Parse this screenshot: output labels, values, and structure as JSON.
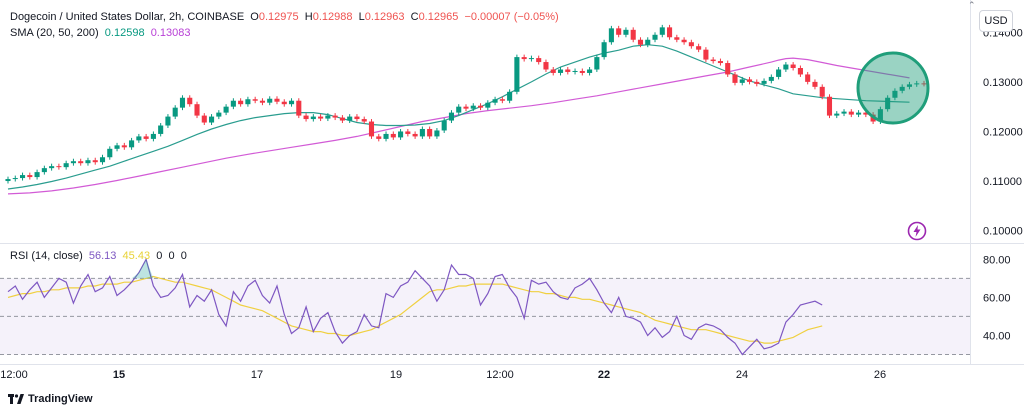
{
  "header": {
    "symbol": "Dogecoin / United States Dollar, 2h, COINBASE",
    "o_label": "O",
    "o_val": "0.12975",
    "h_label": "H",
    "h_val": "0.12988",
    "l_label": "L",
    "l_val": "0.12963",
    "c_label": "C",
    "c_val": "0.12965",
    "change": "−0.00007 (−0.05%)",
    "sma_label": "SMA (20, 50, 200)",
    "sma20_val": "0.12598",
    "sma50_val": "0.13083"
  },
  "currency_button": "USD",
  "rsi_header": {
    "label": "RSI (14, close)",
    "rsi_val": "56.13",
    "ma_val": "45.43",
    "z1": "0",
    "z2": "0",
    "z3": "0"
  },
  "branding": {
    "name": "TradingView"
  },
  "colors": {
    "up": "#089981",
    "down": "#f23645",
    "sma20": "#2a9d8f",
    "sma50": "#d25bd6",
    "rsi": "#7e57c2",
    "rsi_ma": "#f0d040",
    "highlight": "#1f9e7a"
  },
  "icons": [
    "lightning-icon",
    "tradingview-logo-icon"
  ],
  "chart_data": [
    {
      "type": "candlestick",
      "price_axis_ticks": [
        "0.14000",
        "0.13000",
        "0.12000",
        "0.11000",
        "0.10000"
      ],
      "price_range": [
        0.0975,
        0.1445
      ],
      "x_ticks": [
        "12:00",
        "15",
        "17",
        "19",
        "12:00",
        "22",
        "24",
        "26"
      ],
      "x_range": [
        0,
        126
      ],
      "candles": [
        [
          0.11,
          0.1104
        ],
        [
          0.1104,
          0.1106
        ],
        [
          0.1106,
          0.1112
        ],
        [
          0.1112,
          0.1108
        ],
        [
          0.1108,
          0.1118
        ],
        [
          0.1118,
          0.1126
        ],
        [
          0.1126,
          0.113
        ],
        [
          0.113,
          0.1128
        ],
        [
          0.1128,
          0.1136
        ],
        [
          0.1136,
          0.114
        ],
        [
          0.114,
          0.1136
        ],
        [
          0.1136,
          0.1142
        ],
        [
          0.1142,
          0.1138
        ],
        [
          0.1138,
          0.1148
        ],
        [
          0.1148,
          0.1165
        ],
        [
          0.1165,
          0.1172
        ],
        [
          0.1172,
          0.1168
        ],
        [
          0.1168,
          0.1182
        ],
        [
          0.1182,
          0.119
        ],
        [
          0.119,
          0.1185
        ],
        [
          0.1185,
          0.1195
        ],
        [
          0.1195,
          0.1212
        ],
        [
          0.1212,
          0.123
        ],
        [
          0.123,
          0.1248
        ],
        [
          0.1248,
          0.1268
        ],
        [
          0.1268,
          0.1255
        ],
        [
          0.1255,
          0.1232
        ],
        [
          0.1232,
          0.1218
        ],
        [
          0.1218,
          0.123
        ],
        [
          0.123,
          0.1238
        ],
        [
          0.1238,
          0.125
        ],
        [
          0.125,
          0.1262
        ],
        [
          0.1262,
          0.1255
        ],
        [
          0.1255,
          0.1265
        ],
        [
          0.1265,
          0.1262
        ],
        [
          0.1262,
          0.1258
        ],
        [
          0.1258,
          0.1266
        ],
        [
          0.1266,
          0.126
        ],
        [
          0.126,
          0.1255
        ],
        [
          0.1255,
          0.1262
        ],
        [
          0.1262,
          0.1232
        ],
        [
          0.1232,
          0.1225
        ],
        [
          0.1225,
          0.123
        ],
        [
          0.123,
          0.1226
        ],
        [
          0.1226,
          0.1232
        ],
        [
          0.1232,
          0.1228
        ],
        [
          0.1228,
          0.1222
        ],
        [
          0.1222,
          0.123
        ],
        [
          0.123,
          0.1225
        ],
        [
          0.1225,
          0.122
        ],
        [
          0.122,
          0.119
        ],
        [
          0.119,
          0.1185
        ],
        [
          0.1185,
          0.1195
        ],
        [
          0.1195,
          0.1188
        ],
        [
          0.1188,
          0.12
        ],
        [
          0.12,
          0.1195
        ],
        [
          0.1195,
          0.119
        ],
        [
          0.119,
          0.1205
        ],
        [
          0.1205,
          0.119
        ],
        [
          0.119,
          0.1202
        ],
        [
          0.1202,
          0.1222
        ],
        [
          0.1222,
          0.1238
        ],
        [
          0.1238,
          0.125
        ],
        [
          0.125,
          0.1246
        ],
        [
          0.1246,
          0.1252
        ],
        [
          0.1252,
          0.1248
        ],
        [
          0.1248,
          0.1258
        ],
        [
          0.1258,
          0.1265
        ],
        [
          0.1265,
          0.1262
        ],
        [
          0.1262,
          0.128
        ],
        [
          0.128,
          0.135
        ],
        [
          0.135,
          0.1346
        ],
        [
          0.1346,
          0.1348
        ],
        [
          0.1348,
          0.134
        ],
        [
          0.134,
          0.1325
        ],
        [
          0.1325,
          0.1318
        ],
        [
          0.1318,
          0.1325
        ],
        [
          0.1325,
          0.132
        ],
        [
          0.132,
          0.1322
        ],
        [
          0.1322,
          0.1318
        ],
        [
          0.1318,
          0.1325
        ],
        [
          0.1325,
          0.135
        ],
        [
          0.135,
          0.138
        ],
        [
          0.138,
          0.1408
        ],
        [
          0.1408,
          0.1395
        ],
        [
          0.1395,
          0.1405
        ],
        [
          0.1405,
          0.1385
        ],
        [
          0.1385,
          0.1375
        ],
        [
          0.1375,
          0.1385
        ],
        [
          0.1385,
          0.1395
        ],
        [
          0.1395,
          0.141
        ],
        [
          0.141,
          0.139
        ],
        [
          0.139,
          0.1385
        ],
        [
          0.1385,
          0.138
        ],
        [
          0.138,
          0.1372
        ],
        [
          0.1372,
          0.1365
        ],
        [
          0.1365,
          0.1345
        ],
        [
          0.1345,
          0.1342
        ],
        [
          0.1342,
          0.1338
        ],
        [
          0.1338,
          0.1315
        ],
        [
          0.1315,
          0.1298
        ],
        [
          0.1298,
          0.1305
        ],
        [
          0.1305,
          0.13
        ],
        [
          0.13,
          0.1296
        ],
        [
          0.1296,
          0.1302
        ],
        [
          0.1302,
          0.131
        ],
        [
          0.131,
          0.1325
        ],
        [
          0.1325,
          0.1335
        ],
        [
          0.1335,
          0.1328
        ],
        [
          0.1328,
          0.1315
        ],
        [
          0.1315,
          0.13
        ],
        [
          0.13,
          0.129
        ],
        [
          0.129,
          0.127
        ],
        [
          0.127,
          0.1232
        ],
        [
          0.1232,
          0.1236
        ],
        [
          0.1236,
          0.124
        ],
        [
          0.124,
          0.1234
        ],
        [
          0.1234,
          0.1238
        ],
        [
          0.1238,
          0.1234
        ],
        [
          0.1234,
          0.122
        ],
        [
          0.122,
          0.1245
        ],
        [
          0.1245,
          0.1268
        ],
        [
          0.1268,
          0.1282
        ],
        [
          0.1282,
          0.129
        ],
        [
          0.129,
          0.1295
        ],
        [
          0.1295,
          0.1297
        ],
        [
          0.1297,
          0.1296
        ]
      ],
      "sma20": [
        0.1084,
        0.1088,
        0.1093,
        0.1099,
        0.1106,
        0.1114,
        0.1122,
        0.113,
        0.114,
        0.115,
        0.116,
        0.117,
        0.1182,
        0.1194,
        0.1205,
        0.1214,
        0.1222,
        0.1228,
        0.1232,
        0.1236,
        0.1238,
        0.1238,
        0.1234,
        0.1226,
        0.1218,
        0.1214,
        0.1212,
        0.1212,
        0.1213,
        0.1216,
        0.1222,
        0.1232,
        0.1244,
        0.1256,
        0.127,
        0.1285,
        0.13,
        0.1316,
        0.133,
        0.134,
        0.135,
        0.1358,
        0.1364,
        0.1372,
        0.1375,
        0.1372,
        0.1362,
        0.135,
        0.1338,
        0.1326,
        0.1314,
        0.1302,
        0.1294,
        0.1286,
        0.1276,
        0.1268,
        0.1262,
        0.1259
      ],
      "sma20_x": [
        0,
        2,
        4,
        6,
        8,
        10,
        12,
        14,
        16,
        18,
        20,
        22,
        24,
        26,
        28,
        30,
        32,
        34,
        36,
        38,
        40,
        42,
        44,
        46,
        48,
        50,
        52,
        54,
        56,
        58,
        60,
        62,
        64,
        66,
        68,
        70,
        72,
        74,
        76,
        78,
        80,
        82,
        84,
        86,
        88,
        90,
        92,
        94,
        96,
        98,
        100,
        102,
        104,
        106,
        108,
        112,
        118,
        124
      ],
      "sma50": [
        0.1074,
        0.1076,
        0.108,
        0.1086,
        0.1093,
        0.1101,
        0.111,
        0.1119,
        0.1128,
        0.1137,
        0.1146,
        0.1154,
        0.1161,
        0.1168,
        0.1175,
        0.1182,
        0.119,
        0.12,
        0.121,
        0.122,
        0.1228,
        0.1236,
        0.1242,
        0.1247,
        0.1252,
        0.1258,
        0.1265,
        0.1272,
        0.128,
        0.1288,
        0.1296,
        0.1304,
        0.1312,
        0.132,
        0.133,
        0.134,
        0.1344,
        0.1347,
        0.1348,
        0.1345,
        0.1339,
        0.1333,
        0.1328,
        0.1308
      ],
      "sma50_x": [
        0,
        3,
        6,
        9,
        12,
        15,
        18,
        21,
        24,
        27,
        30,
        33,
        36,
        39,
        42,
        45,
        48,
        51,
        54,
        57,
        60,
        63,
        66,
        69,
        72,
        75,
        78,
        81,
        84,
        87,
        90,
        93,
        96,
        99,
        102,
        105,
        106,
        107,
        108,
        110,
        112,
        114,
        116,
        124
      ]
    },
    {
      "type": "line",
      "name": "RSI",
      "y_ticks": [
        "80.00",
        "60.00",
        "40.00"
      ],
      "y_range": [
        25,
        87
      ],
      "bands": [
        70,
        50,
        30
      ],
      "rsi": [
        63,
        66,
        59,
        64,
        68,
        60,
        65,
        70,
        68,
        57,
        66,
        72,
        63,
        65,
        71,
        61,
        64,
        68,
        73,
        80,
        66,
        60,
        61,
        65,
        72,
        55,
        61,
        58,
        64,
        51,
        45,
        63,
        58,
        66,
        69,
        61,
        57,
        66,
        51,
        41,
        44,
        55,
        42,
        49,
        52,
        42,
        36,
        40,
        42,
        51,
        45,
        44,
        62,
        60,
        66,
        68,
        74,
        70,
        66,
        58,
        64,
        77,
        72,
        72,
        70,
        56,
        62,
        71,
        72,
        65,
        60,
        49,
        69,
        67,
        68,
        63,
        60,
        59,
        65,
        67,
        70,
        64,
        57,
        52,
        60,
        50,
        49,
        47,
        40,
        44,
        39,
        42,
        50,
        40,
        38,
        44,
        46,
        45,
        43,
        39,
        36,
        30,
        34,
        38,
        33,
        34,
        36,
        47,
        51,
        56,
        57,
        58,
        56
      ],
      "ma": [
        60,
        61,
        62,
        62,
        63,
        63,
        64,
        64,
        65,
        65,
        65,
        66,
        66,
        67,
        67,
        67,
        68,
        68,
        69,
        70,
        71,
        70,
        69,
        68,
        68,
        67,
        66,
        65,
        64,
        62,
        60,
        58,
        56,
        55,
        54,
        53,
        51,
        49,
        47,
        45,
        44,
        43,
        42,
        42,
        41,
        41,
        40,
        40,
        41,
        42,
        43,
        45,
        47,
        49,
        51,
        54,
        57,
        60,
        63,
        64,
        64,
        65,
        66,
        66,
        67,
        67,
        67,
        67,
        67,
        66,
        65,
        64,
        63,
        63,
        62,
        62,
        61,
        60,
        60,
        59,
        59,
        58,
        57,
        56,
        55,
        54,
        53,
        52,
        50,
        48,
        47,
        46,
        45,
        44,
        43,
        43,
        43,
        42,
        41,
        40,
        39,
        38,
        37,
        37,
        36,
        36,
        37,
        38,
        39,
        41,
        43,
        44,
        45
      ]
    }
  ]
}
